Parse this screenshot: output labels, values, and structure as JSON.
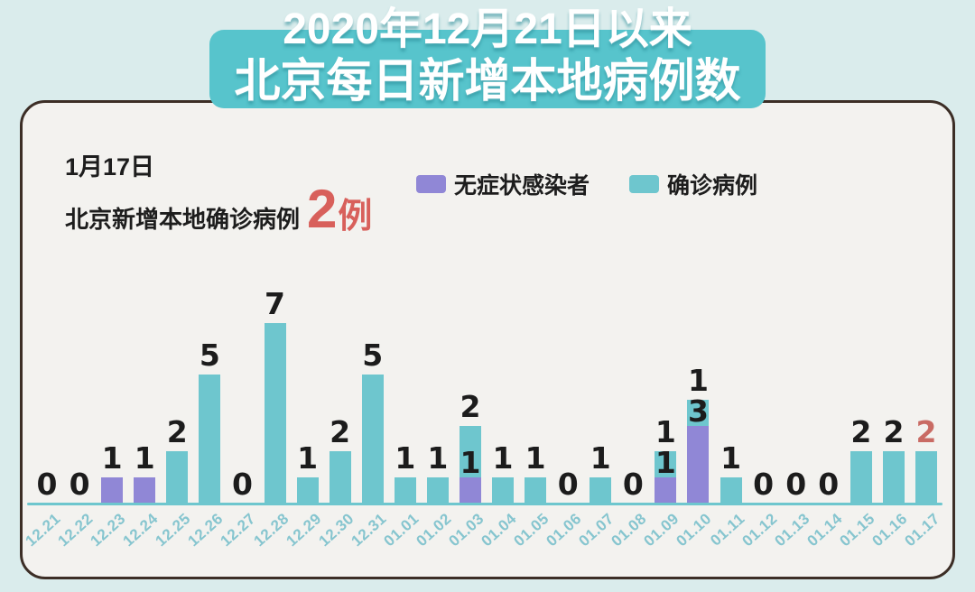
{
  "title": {
    "line1": "2020年12月21日以来",
    "line2": "北京每日新增本地病例数"
  },
  "headline": {
    "date": "1月17日",
    "text": "北京新增本地确诊病例",
    "count": "2",
    "unit": "例"
  },
  "legend": [
    {
      "label": "无症状感染者",
      "color": "#9087d6"
    },
    {
      "label": "确诊病例",
      "color": "#6ec6ce"
    }
  ],
  "colors": {
    "background": "#daecec",
    "card_fill": "#f3f2ef",
    "card_border": "#3c2e26",
    "banner": "#57c4cc",
    "confirmed_bar": "#6ec6ce",
    "asymptomatic_bar": "#9087d6",
    "accent_red": "#d8605b",
    "last_bar_label_red": "#c96b64",
    "axis_line": "#6ec6ce",
    "date_label": "#86c5cf"
  },
  "chart_data": {
    "type": "bar",
    "stacked": true,
    "title": "2020年12月21日以来 北京每日新增本地病例数",
    "xlabel": "",
    "ylabel": "",
    "ylim": [
      0,
      8
    ],
    "grid": false,
    "legend_position": "top",
    "categories": [
      "12.21",
      "12.22",
      "12.23",
      "12.24",
      "12.25",
      "12.26",
      "12.27",
      "12.28",
      "12.29",
      "12.30",
      "12.31",
      "01.01",
      "01.02",
      "01.03",
      "01.04",
      "01.05",
      "01.06",
      "01.07",
      "01.08",
      "01.09",
      "01.10",
      "01.11",
      "01.12",
      "01.13",
      "01.14",
      "01.15",
      "01.16",
      "01.17"
    ],
    "series": [
      {
        "name": "无症状感染者",
        "color": "#9087d6",
        "values": [
          0,
          0,
          1,
          1,
          0,
          0,
          0,
          0,
          0,
          0,
          0,
          0,
          0,
          1,
          0,
          0,
          0,
          0,
          0,
          1,
          3,
          0,
          0,
          0,
          0,
          0,
          0,
          0
        ]
      },
      {
        "name": "确诊病例",
        "color": "#6ec6ce",
        "values": [
          0,
          0,
          0,
          0,
          2,
          5,
          0,
          7,
          1,
          2,
          5,
          1,
          1,
          2,
          1,
          1,
          0,
          1,
          0,
          1,
          1,
          1,
          0,
          0,
          0,
          2,
          2,
          2
        ]
      }
    ],
    "annotations": "每根柱子上方标注确诊病例数，堆叠分界处标注无症状感染者数；01.17 的数值标签为红色"
  }
}
